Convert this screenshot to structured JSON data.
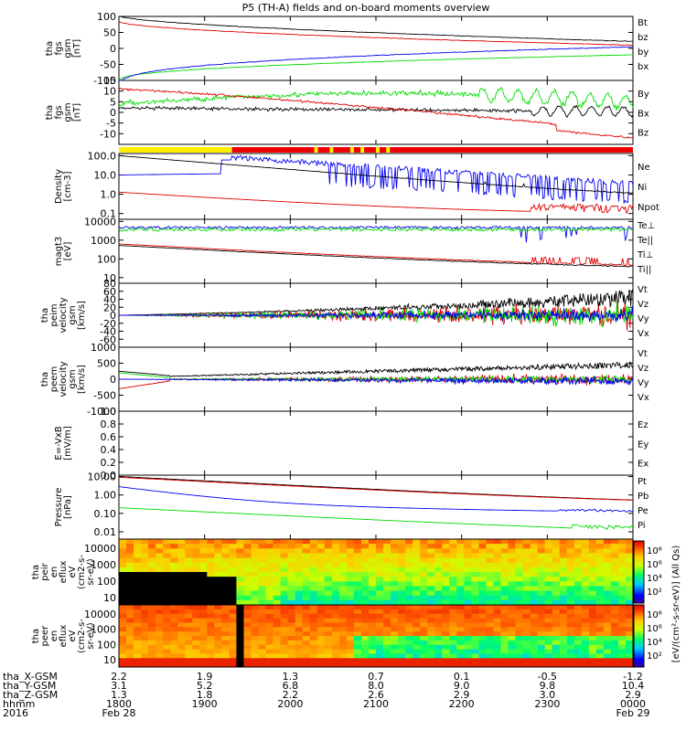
{
  "title": "P5 (TH-A) fields and on-board moments overview",
  "colors": {
    "black": "#000000",
    "red": "#e00000",
    "green": "#00dd00",
    "blue": "#0000ee",
    "lightgreen": "#66dd44",
    "yellow": "#ffee00",
    "barred": "#ee0000"
  },
  "chart_data": [
    {
      "type": "line",
      "panel": "fgs_gsm",
      "ylabel": [
        "tha",
        "fgs",
        "gsm",
        "[nT]"
      ],
      "ylim": [
        -100,
        100
      ],
      "yticks": [
        100,
        50,
        0,
        -50,
        -100
      ],
      "legend": [
        {
          "name": "Bt",
          "color": "#000000"
        },
        {
          "name": "bz",
          "color": "#e00000"
        },
        {
          "name": "by",
          "color": "#00dd00"
        },
        {
          "name": "bx",
          "color": "#0000ee"
        }
      ]
    },
    {
      "type": "line",
      "panel": "fgs_gse",
      "ylabel": [
        "tha",
        "fgs",
        "gsm",
        "[nT]"
      ],
      "ylim": [
        -15,
        15
      ],
      "yticks": [
        15,
        10,
        5,
        0,
        -5,
        -10
      ],
      "legend": [
        {
          "name": "By",
          "color": "#00dd00"
        },
        {
          "name": "Bx",
          "color": "#000000"
        },
        {
          "name": "Bz",
          "color": "#e00000"
        }
      ]
    },
    {
      "type": "line",
      "panel": "density",
      "log": true,
      "ylabel": [
        "Density",
        "[cm-3]"
      ],
      "ylim": [
        0.05,
        130
      ],
      "yticks": [
        "100.0",
        "10.0",
        "1.0",
        "0.1"
      ],
      "legend": [
        {
          "name": "Ne",
          "color": "#e00000"
        },
        {
          "name": "Ni",
          "color": "#000000"
        },
        {
          "name": "Npot",
          "color": "#0000ee"
        }
      ]
    },
    {
      "type": "line",
      "panel": "temperature",
      "log": true,
      "ylabel": [
        "magt3",
        "[eV]"
      ],
      "ylim": [
        5,
        13000
      ],
      "yticks": [
        "10000",
        "1000",
        "100",
        "10"
      ],
      "legend": [
        {
          "name": "Te⊥",
          "color": "#e00000"
        },
        {
          "name": "Te||",
          "color": "#000000"
        },
        {
          "name": "Ti⊥",
          "color": "#66dd44"
        },
        {
          "name": "Ti||",
          "color": "#66dd44"
        }
      ]
    },
    {
      "type": "line",
      "panel": "peim_velocity",
      "ylabel": [
        "tha",
        "peim",
        "velocity",
        "gsm",
        "[km/s]"
      ],
      "ylim": [
        -80,
        80
      ],
      "yticks": [
        80,
        60,
        40,
        20,
        0,
        -20,
        -40,
        -60
      ],
      "legend": [
        {
          "name": "Vt",
          "color": "#000000"
        },
        {
          "name": "Vz",
          "color": "#e00000"
        },
        {
          "name": "Vy",
          "color": "#00dd00"
        },
        {
          "name": "Vx",
          "color": "#0000ee"
        }
      ]
    },
    {
      "type": "line",
      "panel": "peem_velocity",
      "ylabel": [
        "tha",
        "peem",
        "velocity",
        "gsm",
        "[km/s]"
      ],
      "ylim": [
        -1000,
        1000
      ],
      "yticks": [
        1000,
        500,
        0,
        -500,
        -1000
      ],
      "legend": [
        {
          "name": "Vt",
          "color": "#000000"
        },
        {
          "name": "Vz",
          "color": "#e00000"
        },
        {
          "name": "Vy",
          "color": "#00dd00"
        },
        {
          "name": "Vx",
          "color": "#0000ee"
        }
      ]
    },
    {
      "type": "line",
      "panel": "efield",
      "ylabel": [
        "E=-VxB",
        "[mV/m]"
      ],
      "ylim": [
        0,
        1
      ],
      "yticks": [
        "1.0",
        "0.8",
        "0.6",
        "0.4",
        "0.2",
        "0.0"
      ],
      "legend": [
        {
          "name": "Ez",
          "color": "#e00000"
        },
        {
          "name": "Ey",
          "color": "#00dd00"
        },
        {
          "name": "Ex",
          "color": "#0000ee"
        }
      ]
    },
    {
      "type": "line",
      "panel": "pressure",
      "log": true,
      "ylabel": [
        "Pressure",
        "[nPa]"
      ],
      "ylim": [
        0.004,
        12
      ],
      "yticks": [
        "10.00",
        "1.00",
        "0.10",
        "0.01"
      ],
      "legend": [
        {
          "name": "Pt",
          "color": "#000000"
        },
        {
          "name": "Pb",
          "color": "#e00000"
        },
        {
          "name": "Pe",
          "color": "#00dd00"
        },
        {
          "name": "Pi",
          "color": "#0000ee"
        }
      ]
    },
    {
      "type": "heatmap",
      "panel": "peir",
      "ylabel": [
        "tha",
        "peir",
        "en",
        "eflux",
        "eV",
        "(cm2-s-",
        "sr-eV)"
      ],
      "yticks": [
        "10000",
        "1000",
        "100",
        "10"
      ]
    },
    {
      "type": "heatmap",
      "panel": "peer",
      "ylabel": [
        "tha",
        "peer",
        "en",
        "eflux",
        "eV",
        "(cm2-s-",
        "sr-eV)"
      ],
      "yticks": [
        "10000",
        "1000",
        "100",
        "10"
      ]
    }
  ],
  "colorbar": {
    "label": "[eV/(cm²-s-sr-eV)] (All Qs)",
    "upper_ticks": [
      "10⁸",
      "10⁶",
      "10⁴",
      "10²"
    ],
    "lower_ticks": [
      "10⁸",
      "10⁶",
      "10⁴",
      "10²"
    ]
  },
  "xaxis": {
    "rows": [
      {
        "label": "tha_X-GSM",
        "values": [
          "2.2",
          "1.9",
          "1.3",
          "0.7",
          "0.1",
          "-0.5",
          "-1.2"
        ]
      },
      {
        "label": "tha_Y-GSM",
        "values": [
          "3.1",
          "5.2",
          "6.8",
          "8.0",
          "9.0",
          "9.8",
          "10.4"
        ]
      },
      {
        "label": "tha_Z-GSM",
        "values": [
          "1.3",
          "1.8",
          "2.2",
          "2.6",
          "2.9",
          "3.0",
          "2.9"
        ]
      },
      {
        "label": "hhmm",
        "values": [
          "1800",
          "1900",
          "2000",
          "2100",
          "2200",
          "2300",
          "0000"
        ]
      },
      {
        "label": "2016",
        "values": [
          "Feb 28",
          "",
          "",
          "",
          "",
          "",
          "Feb 29"
        ]
      }
    ]
  }
}
